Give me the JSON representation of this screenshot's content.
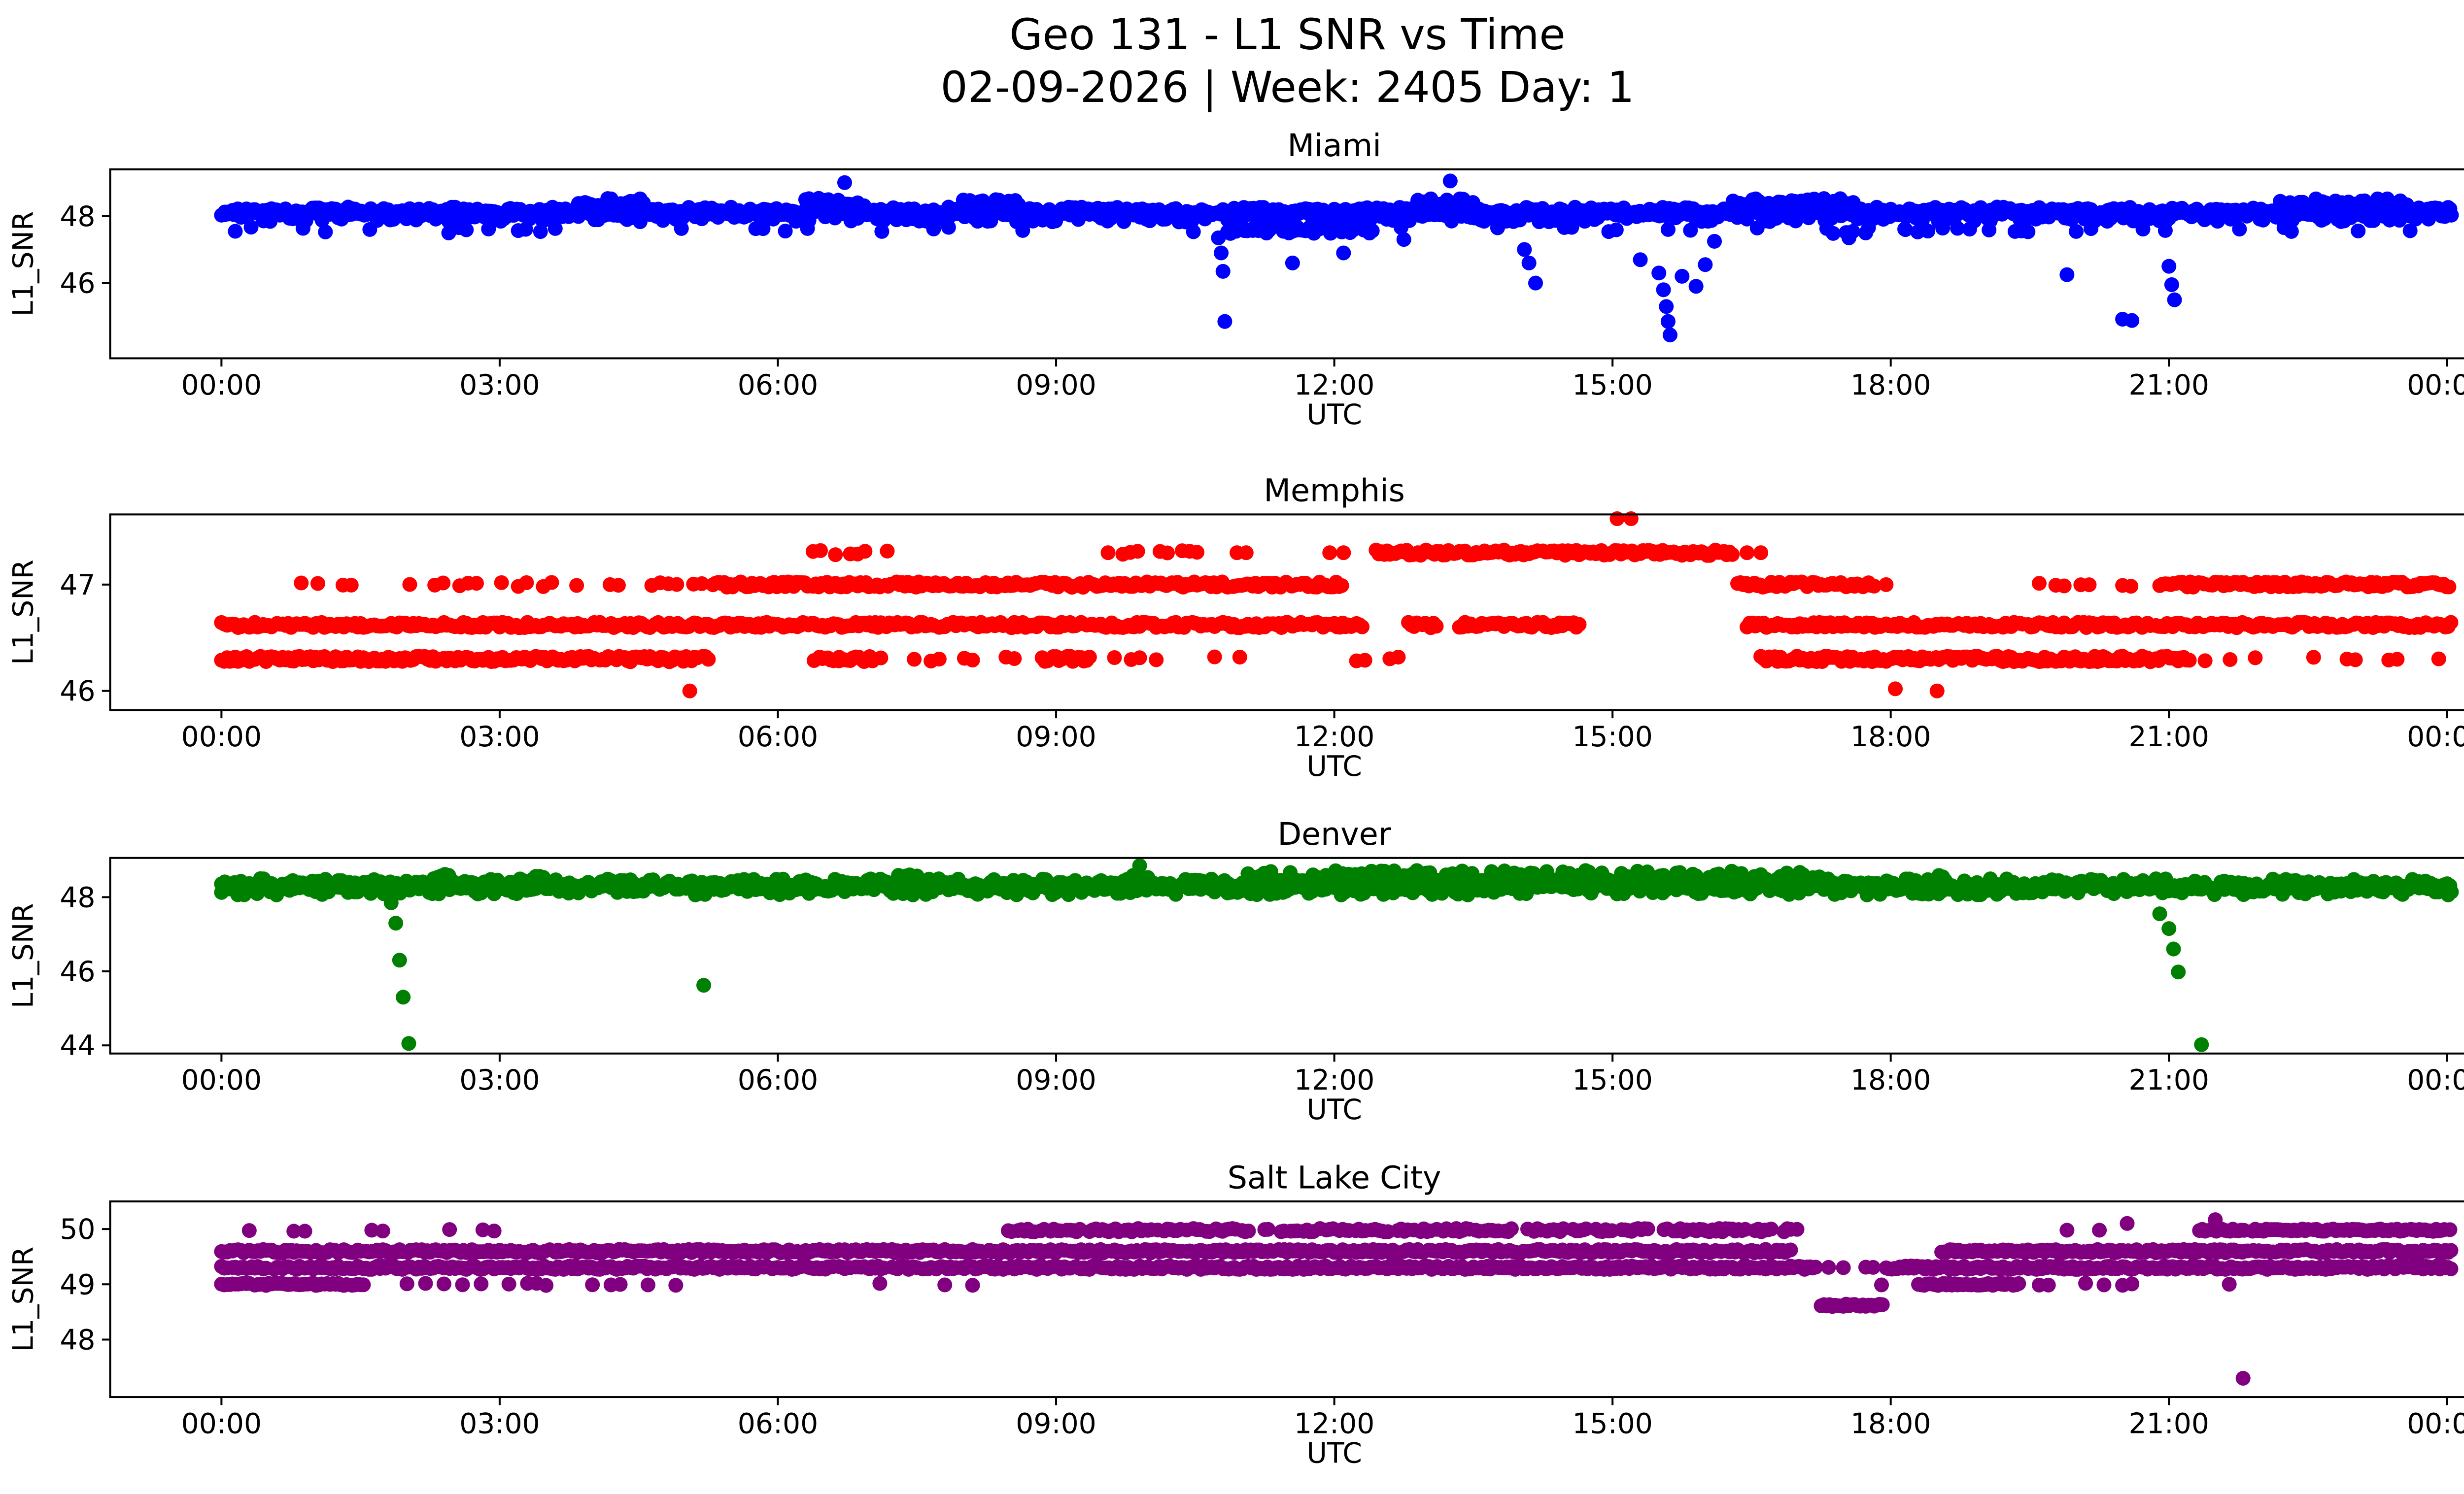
{
  "figure": {
    "title_line1": "Geo 131 - L1 SNR vs Time",
    "title_line2": "02-09-2026 | Week: 2405 Day: 1"
  },
  "x_axis": {
    "label": "UTC",
    "tick_labels": [
      "00:00",
      "03:00",
      "06:00",
      "09:00",
      "12:00",
      "15:00",
      "18:00",
      "21:00",
      "00:00"
    ],
    "tick_hours": [
      0,
      3,
      6,
      9,
      12,
      15,
      18,
      21,
      24
    ],
    "xlim": [
      -1.2,
      25.2
    ]
  },
  "chart_data": [
    {
      "type": "scatter",
      "title": "Miami",
      "color": "#0000ff",
      "ylabel": "L1_SNR",
      "xlabel": "UTC",
      "yticks": [
        46,
        48
      ],
      "ylim": [
        43.75,
        49.4
      ],
      "bands": [
        {
          "y": 48.05,
          "jitter": 0.22,
          "segments": [
            [
              0,
              24.05
            ]
          ],
          "step": 0.035,
          "gap": 0.05
        },
        {
          "y": 48.12,
          "jitter": 0.1,
          "segments": [
            [
              0,
              24.05
            ]
          ],
          "step": 0.03,
          "gap": 0.05
        },
        {
          "y": 48.4,
          "jitter": 0.13,
          "segments": [
            [
              3.85,
              4.65
            ],
            [
              6.3,
              7.1
            ],
            [
              8.0,
              8.6
            ],
            [
              12.9,
              13.5
            ],
            [
              16.3,
              17.6
            ],
            [
              22.2,
              23.6
            ]
          ],
          "step": 0.035,
          "gap": 0.15
        },
        {
          "y": 47.62,
          "jitter": 0.14,
          "segments": [
            [
              10.85,
              12.45
            ]
          ],
          "step": 0.03,
          "gap": 0.1
        },
        {
          "y": 47.6,
          "jitter": 0.07,
          "segments": [
            [
              0,
              24.0
            ]
          ],
          "step": 0.08,
          "gap": 0.87
        },
        {
          "y": 47.55,
          "jitter": 0.08,
          "segments": [
            [
              17.1,
              19.7
            ]
          ],
          "step": 0.07,
          "gap": 0.75
        }
      ],
      "points": [
        [
          6.72,
          49.0
        ],
        [
          13.25,
          49.05
        ],
        [
          10.75,
          47.35
        ],
        [
          10.78,
          46.9
        ],
        [
          10.8,
          46.35
        ],
        [
          10.82,
          44.85
        ],
        [
          11.55,
          46.6
        ],
        [
          12.1,
          46.9
        ],
        [
          12.75,
          47.3
        ],
        [
          14.05,
          47.0
        ],
        [
          14.1,
          46.6
        ],
        [
          14.17,
          46.0
        ],
        [
          15.3,
          46.7
        ],
        [
          15.5,
          46.3
        ],
        [
          15.55,
          45.8
        ],
        [
          15.58,
          45.3
        ],
        [
          15.6,
          44.85
        ],
        [
          15.62,
          44.45
        ],
        [
          15.75,
          46.2
        ],
        [
          15.9,
          45.9
        ],
        [
          16.0,
          46.55
        ],
        [
          16.1,
          47.25
        ],
        [
          17.55,
          47.35
        ],
        [
          19.9,
          46.25
        ],
        [
          20.5,
          44.92
        ],
        [
          20.6,
          44.88
        ],
        [
          21.0,
          46.5
        ],
        [
          21.03,
          45.95
        ],
        [
          21.06,
          45.5
        ],
        [
          2.45,
          47.5
        ],
        [
          0.15,
          47.55
        ]
      ]
    },
    {
      "type": "scatter",
      "title": "Memphis",
      "color": "#ff0000",
      "ylabel": "L1_SNR",
      "xlabel": "UTC",
      "yticks": [
        46,
        47
      ],
      "ylim": [
        45.82,
        47.66
      ],
      "bands": [
        {
          "y": 46.3,
          "jitter": 0.025,
          "segments": [
            [
              0,
              5.25
            ],
            [
              6.45,
              7.05
            ],
            [
              8.85,
              9.35
            ],
            [
              16.6,
              21.25
            ]
          ],
          "step": 0.03,
          "gap": 0.03
        },
        {
          "y": 46.62,
          "jitter": 0.025,
          "segments": [
            [
              0,
              12.3
            ],
            [
              12.8,
              13.1
            ],
            [
              13.35,
              14.65
            ],
            [
              16.45,
              24.05
            ]
          ],
          "step": 0.03,
          "gap": 0.03
        },
        {
          "y": 47.0,
          "jitter": 0.025,
          "segments": [
            [
              5.3,
              12.1
            ],
            [
              16.35,
              17.85
            ],
            [
              20.9,
              24.05
            ]
          ],
          "step": 0.03,
          "gap": 0.03
        },
        {
          "y": 47.3,
          "jitter": 0.025,
          "segments": [
            [
              12.45,
              16.3
            ]
          ],
          "step": 0.03,
          "gap": 0.03
        },
        {
          "y": 46.3,
          "jitter": 0.02,
          "segments": [
            [
              5.4,
              12.7
            ],
            [
              21.3,
              24.0
            ]
          ],
          "step": 0.09,
          "gap": 0.78
        },
        {
          "y": 47.0,
          "jitter": 0.02,
          "segments": [
            [
              0.05,
              5.2
            ],
            [
              19.6,
              20.6
            ]
          ],
          "step": 0.09,
          "gap": 0.55
        },
        {
          "y": 47.3,
          "jitter": 0.02,
          "segments": [
            [
              6.3,
              7.3
            ],
            [
              9.4,
              10.6
            ]
          ],
          "step": 0.08,
          "gap": 0.5
        }
      ],
      "points": [
        [
          10.95,
          47.3
        ],
        [
          11.05,
          47.3
        ],
        [
          11.95,
          47.3
        ],
        [
          12.1,
          47.3
        ],
        [
          16.45,
          47.3
        ],
        [
          16.6,
          47.3
        ],
        [
          15.05,
          47.62
        ],
        [
          15.2,
          47.62
        ],
        [
          5.05,
          46.0
        ],
        [
          18.05,
          46.02
        ],
        [
          18.5,
          46.0
        ],
        [
          17.95,
          47.0
        ]
      ]
    },
    {
      "type": "scatter",
      "title": "Denver",
      "color": "#008000",
      "ylabel": "L1_SNR",
      "xlabel": "UTC",
      "yticks": [
        44,
        46,
        48
      ],
      "ylim": [
        43.78,
        49.06
      ],
      "bands": [
        {
          "y": 48.28,
          "jitter": 0.22,
          "segments": [
            [
              0,
              24.05
            ]
          ],
          "step": 0.035,
          "gap": 0.05
        },
        {
          "y": 48.3,
          "jitter": 0.1,
          "segments": [
            [
              0,
              24.05
            ]
          ],
          "step": 0.03,
          "gap": 0.05
        },
        {
          "y": 48.5,
          "jitter": 0.22,
          "segments": [
            [
              11.0,
              17.3
            ]
          ],
          "step": 0.035,
          "gap": 0.1
        },
        {
          "y": 48.5,
          "jitter": 0.12,
          "segments": [
            [
              2.25,
              2.5
            ],
            [
              3.15,
              3.55
            ],
            [
              7.3,
              7.55
            ],
            [
              9.75,
              10.0
            ],
            [
              18.4,
              18.6
            ]
          ],
          "step": 0.04,
          "gap": 0.1
        }
      ],
      "points": [
        [
          1.83,
          47.85
        ],
        [
          1.88,
          47.3
        ],
        [
          1.92,
          46.3
        ],
        [
          1.96,
          45.3
        ],
        [
          2.02,
          44.05
        ],
        [
          5.2,
          45.62
        ],
        [
          20.9,
          47.55
        ],
        [
          21.0,
          47.15
        ],
        [
          21.05,
          46.6
        ],
        [
          21.1,
          45.98
        ],
        [
          21.35,
          44.02
        ],
        [
          9.9,
          48.85
        ]
      ]
    },
    {
      "type": "scatter",
      "title": "Salt Lake City",
      "color": "#800080",
      "ylabel": "L1_SNR",
      "xlabel": "UTC",
      "yticks": [
        48,
        49,
        50
      ],
      "ylim": [
        46.96,
        50.5
      ],
      "bands": [
        {
          "y": 49.3,
          "jitter": 0.03,
          "segments": [
            [
              0,
              17.2
            ],
            [
              17.95,
              24.05
            ]
          ],
          "step": 0.03,
          "gap": 0.03
        },
        {
          "y": 49.6,
          "jitter": 0.03,
          "segments": [
            [
              0,
              16.95
            ],
            [
              18.55,
              24.05
            ]
          ],
          "step": 0.03,
          "gap": 0.03
        },
        {
          "y": 49.0,
          "jitter": 0.02,
          "segments": [
            [
              0,
              1.55
            ],
            [
              18.3,
              19.4
            ]
          ],
          "step": 0.03,
          "gap": 0.05
        },
        {
          "y": 49.0,
          "jitter": 0.02,
          "segments": [
            [
              1.8,
              5.3
            ],
            [
              6.7,
              9.0
            ],
            [
              17.9,
              21.0
            ]
          ],
          "step": 0.1,
          "gap": 0.72
        },
        {
          "y": 49.98,
          "jitter": 0.03,
          "segments": [
            [
              8.45,
              17.05
            ]
          ],
          "step": 0.035,
          "gap": 0.25
        },
        {
          "y": 49.98,
          "jitter": 0.02,
          "segments": [
            [
              21.3,
              24.05
            ]
          ],
          "step": 0.03,
          "gap": 0.08
        },
        {
          "y": 49.98,
          "jitter": 0.02,
          "segments": [
            [
              0.3,
              3.1
            ]
          ],
          "step": 0.12,
          "gap": 0.75
        },
        {
          "y": 48.62,
          "jitter": 0.02,
          "segments": [
            [
              17.25,
              17.95
            ]
          ],
          "step": 0.03,
          "gap": 0.05
        },
        {
          "y": 49.3,
          "jitter": 0.02,
          "segments": [
            [
              17.25,
              17.9
            ]
          ],
          "step": 0.08,
          "gap": 0.6
        }
      ],
      "points": [
        [
          21.8,
          47.3
        ],
        [
          20.55,
          50.1
        ],
        [
          21.5,
          50.17
        ],
        [
          19.9,
          49.98
        ],
        [
          20.25,
          49.98
        ],
        [
          21.65,
          49.0
        ]
      ]
    }
  ]
}
